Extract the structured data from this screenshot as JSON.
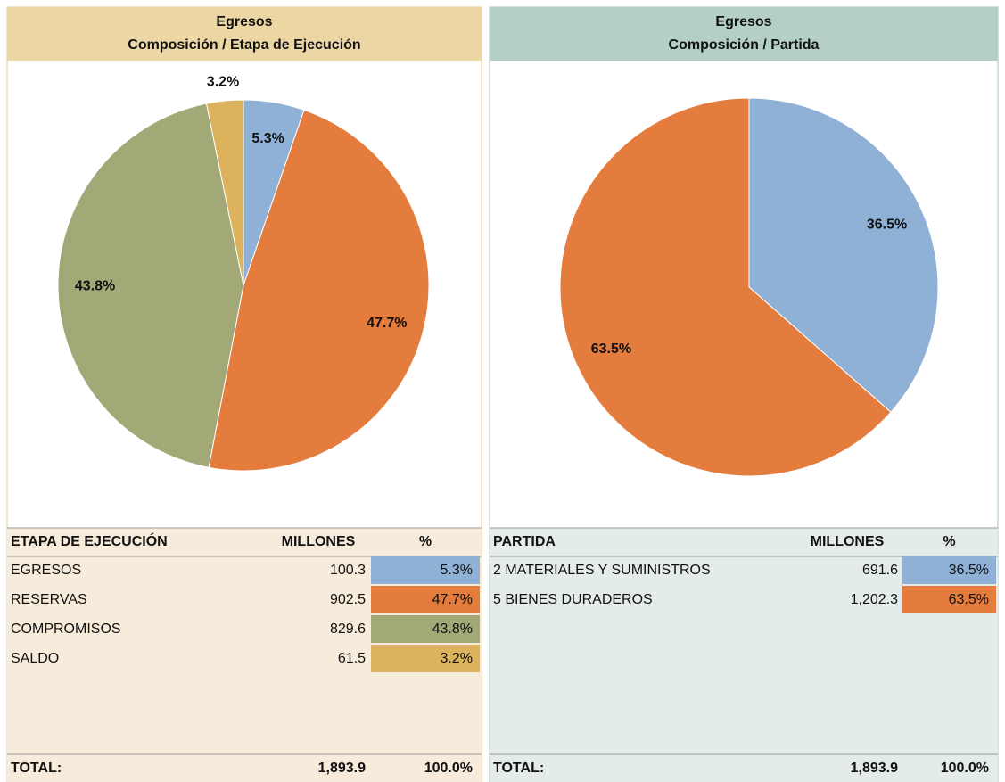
{
  "chart_data": [
    {
      "type": "pie",
      "title": "Egresos",
      "subtitle": "Composición / Etapa de Ejecución",
      "values": [
        5.3,
        47.7,
        43.8,
        3.2
      ],
      "value_labels": [
        "5.3%",
        "47.7%",
        "43.8%",
        "3.2%"
      ],
      "colors": [
        "#8fb1d6",
        "#e47c3e",
        "#a2a876",
        "#dcb35c"
      ]
    },
    {
      "type": "pie",
      "title": "Egresos",
      "subtitle": "Composición / Partida",
      "values": [
        36.5,
        63.5
      ],
      "value_labels": [
        "36.5%",
        "63.5%"
      ],
      "colors": [
        "#8fb1d6",
        "#e47c3e"
      ]
    }
  ],
  "tables": [
    {
      "headers": [
        "ETAPA DE EJECUCIÓN",
        "MILLONES",
        "%"
      ],
      "rows": [
        [
          "EGRESOS",
          "100.3",
          "5.3%"
        ],
        [
          "RESERVAS",
          "902.5",
          "47.7%"
        ],
        [
          "COMPROMISOS",
          "829.6",
          "43.8%"
        ],
        [
          "SALDO",
          "61.5",
          "3.2%"
        ]
      ],
      "total": [
        "TOTAL:",
        "1,893.9",
        "100.0%"
      ]
    },
    {
      "headers": [
        "PARTIDA",
        "MILLONES",
        "%"
      ],
      "rows": [
        [
          "2 MATERIALES Y SUMINISTROS",
          "691.6",
          "36.5%"
        ],
        [
          "5 BIENES DURADEROS",
          "1,202.3",
          "63.5%"
        ]
      ],
      "total": [
        "TOTAL:",
        "1,893.9",
        "100.0%"
      ]
    }
  ]
}
